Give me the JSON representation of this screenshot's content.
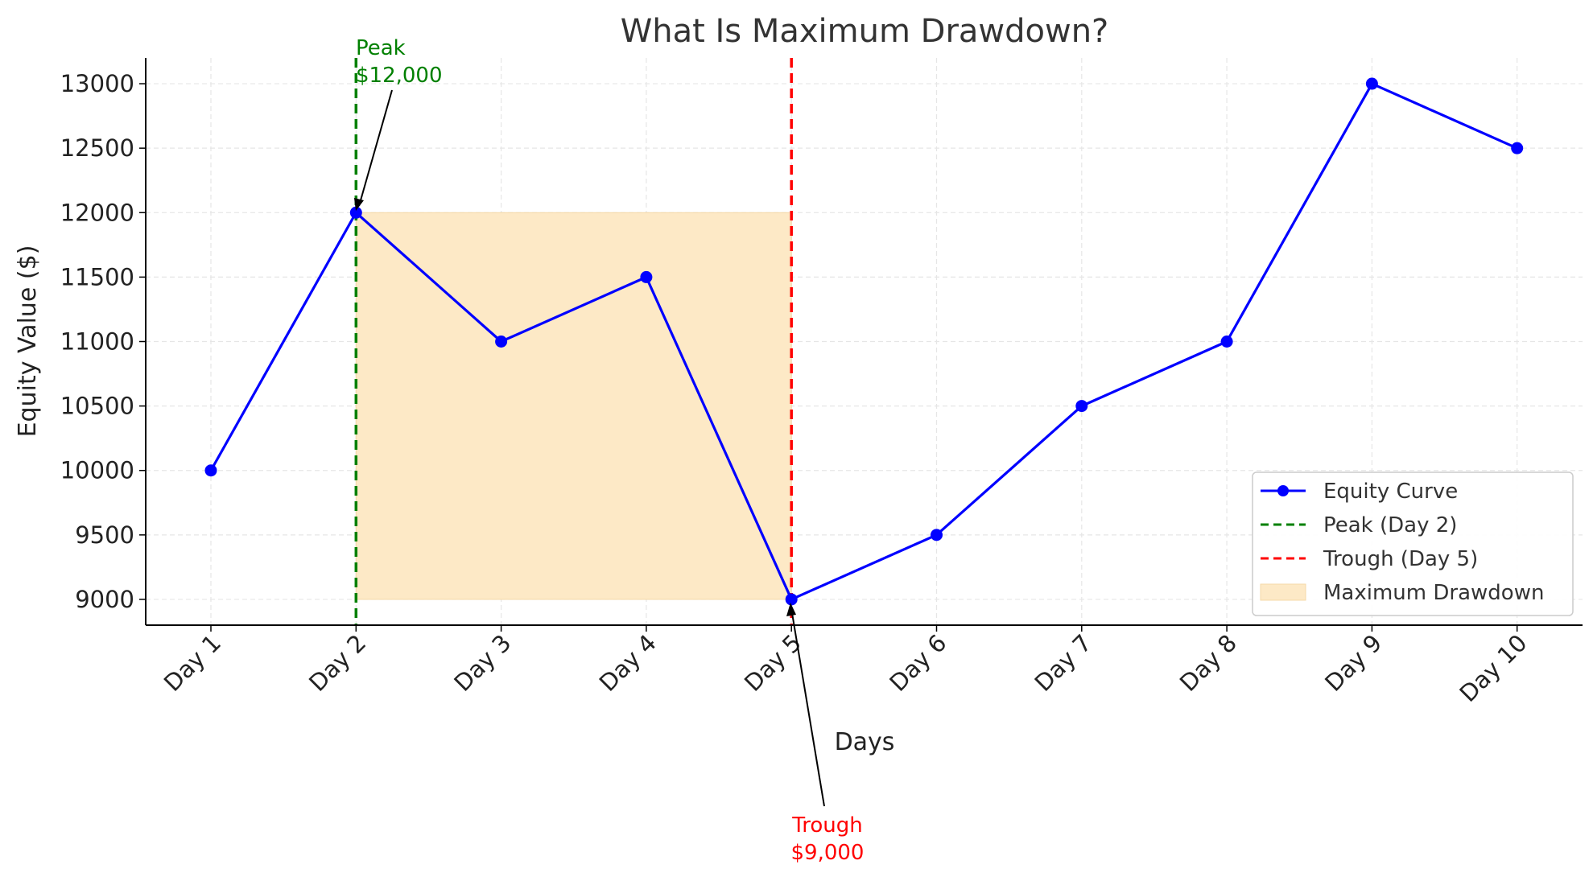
{
  "chart_data": {
    "type": "line",
    "title": "What Is Maximum Drawdown?",
    "xlabel": "Days",
    "ylabel": "Equity Value ($)",
    "categories": [
      "Day 1",
      "Day 2",
      "Day 3",
      "Day 4",
      "Day 5",
      "Day 6",
      "Day 7",
      "Day 8",
      "Day 9",
      "Day 10"
    ],
    "series": [
      {
        "name": "Equity Curve",
        "values": [
          10000,
          12000,
          11000,
          11500,
          9000,
          9500,
          10500,
          11000,
          13000,
          12500
        ],
        "color": "#0000ff"
      }
    ],
    "yticks": [
      9000,
      9500,
      10000,
      10500,
      11000,
      11500,
      12000,
      12500,
      13000
    ],
    "ylim": [
      8800,
      13200
    ],
    "grid": true,
    "legend_position": "bottom-right",
    "peak": {
      "category": "Day 2",
      "value": 12000,
      "legend": "Peak (Day 2)",
      "label_line1": "Peak",
      "label_line2": "$12,000",
      "color": "#008000"
    },
    "trough": {
      "category": "Day 5",
      "value": 9000,
      "legend": "Trough (Day 5)",
      "label_line1": "Trough",
      "label_line2": "$9,000",
      "color": "#ff0000"
    },
    "drawdown": {
      "legend": "Maximum Drawdown",
      "from": "Day 2",
      "to": "Day 5",
      "top": 12000,
      "bottom": 9000,
      "color": "#fde9c6"
    }
  }
}
